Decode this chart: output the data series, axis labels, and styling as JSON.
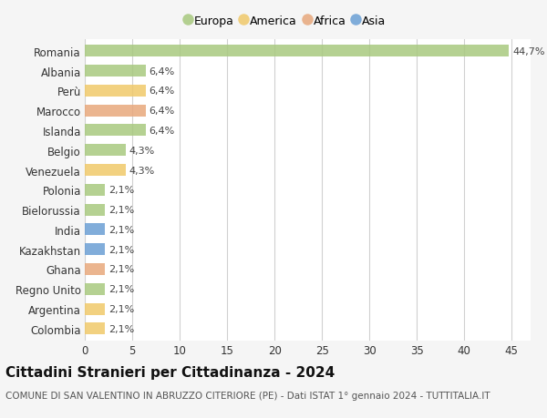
{
  "countries": [
    "Romania",
    "Albania",
    "Perù",
    "Marocco",
    "Islanda",
    "Belgio",
    "Venezuela",
    "Polonia",
    "Bielorussia",
    "India",
    "Kazakhstan",
    "Ghana",
    "Regno Unito",
    "Argentina",
    "Colombia"
  ],
  "values": [
    44.7,
    6.4,
    6.4,
    6.4,
    6.4,
    4.3,
    4.3,
    2.1,
    2.1,
    2.1,
    2.1,
    2.1,
    2.1,
    2.1,
    2.1
  ],
  "labels": [
    "44,7%",
    "6,4%",
    "6,4%",
    "6,4%",
    "6,4%",
    "4,3%",
    "4,3%",
    "2,1%",
    "2,1%",
    "2,1%",
    "2,1%",
    "2,1%",
    "2,1%",
    "2,1%",
    "2,1%"
  ],
  "continents": [
    "Europa",
    "Europa",
    "America",
    "Africa",
    "Europa",
    "Europa",
    "America",
    "Europa",
    "Europa",
    "Asia",
    "Asia",
    "Africa",
    "Europa",
    "America",
    "America"
  ],
  "colors": {
    "Europa": "#a8c97f",
    "America": "#f0c96a",
    "Africa": "#e8a87c",
    "Asia": "#6b9fd4"
  },
  "legend_order": [
    "Europa",
    "America",
    "Africa",
    "Asia"
  ],
  "legend_colors": [
    "#a8c97f",
    "#f0c96a",
    "#e8a87c",
    "#6b9fd4"
  ],
  "title": "Cittadini Stranieri per Cittadinanza - 2024",
  "subtitle": "COMUNE DI SAN VALENTINO IN ABRUZZO CITERIORE (PE) - Dati ISTAT 1° gennaio 2024 - TUTTITALIA.IT",
  "xlim": [
    0,
    47
  ],
  "xticks": [
    0,
    5,
    10,
    15,
    20,
    25,
    30,
    35,
    40,
    45
  ],
  "bg_color": "#f5f5f5",
  "plot_bg_color": "#ffffff",
  "grid_color": "#d0d0d0",
  "bar_height": 0.6,
  "title_fontsize": 11,
  "subtitle_fontsize": 7.5,
  "label_fontsize": 8,
  "tick_fontsize": 8.5
}
